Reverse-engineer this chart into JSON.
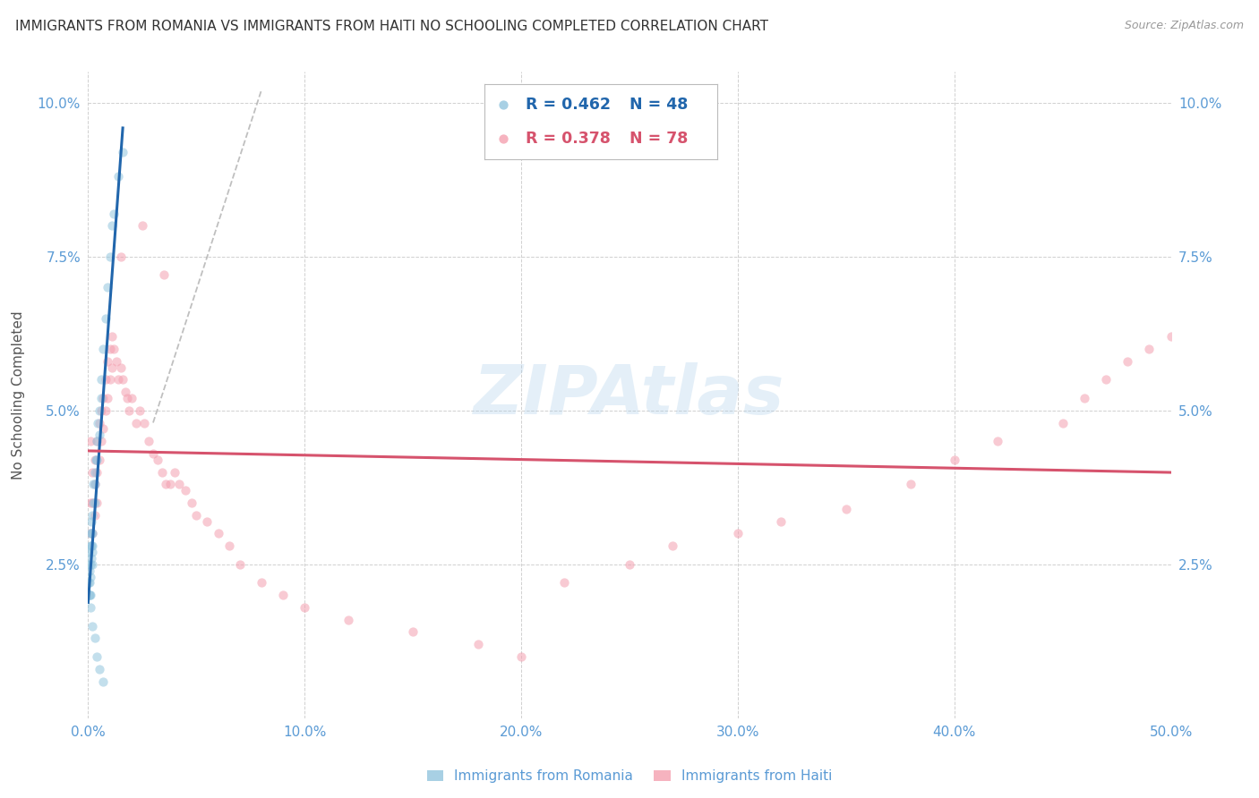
{
  "title": "IMMIGRANTS FROM ROMANIA VS IMMIGRANTS FROM HAITI NO SCHOOLING COMPLETED CORRELATION CHART",
  "source": "Source: ZipAtlas.com",
  "ylabel": "No Schooling Completed",
  "xlim": [
    0.0,
    0.5
  ],
  "ylim": [
    0.0,
    0.105
  ],
  "xticks": [
    0.0,
    0.1,
    0.2,
    0.3,
    0.4,
    0.5
  ],
  "xticklabels": [
    "0.0%",
    "10.0%",
    "20.0%",
    "30.0%",
    "40.0%",
    "50.0%"
  ],
  "yticks": [
    0.0,
    0.025,
    0.05,
    0.075,
    0.1
  ],
  "yticklabels": [
    "",
    "2.5%",
    "5.0%",
    "7.5%",
    "10.0%"
  ],
  "legend_r_romania": "R = 0.462",
  "legend_n_romania": "N = 48",
  "legend_r_haiti": "R = 0.378",
  "legend_n_haiti": "N = 78",
  "color_romania": "#92c5de",
  "color_haiti": "#f4a0b0",
  "color_regression_romania": "#2166ac",
  "color_regression_haiti": "#d6536d",
  "color_title": "#333333",
  "color_source": "#999999",
  "color_axis": "#5b9bd5",
  "watermark": "ZIPAtlas",
  "romania_x": [
    0.0002,
    0.0003,
    0.0004,
    0.0005,
    0.0006,
    0.0007,
    0.0008,
    0.0009,
    0.001,
    0.001,
    0.001,
    0.001,
    0.0012,
    0.0013,
    0.0014,
    0.0015,
    0.0016,
    0.0017,
    0.0018,
    0.002,
    0.002,
    0.002,
    0.0022,
    0.0025,
    0.003,
    0.003,
    0.0032,
    0.0035,
    0.004,
    0.004,
    0.0045,
    0.005,
    0.005,
    0.006,
    0.006,
    0.007,
    0.008,
    0.009,
    0.01,
    0.011,
    0.012,
    0.014,
    0.016,
    0.002,
    0.003,
    0.004,
    0.005,
    0.007
  ],
  "romania_y": [
    0.027,
    0.025,
    0.022,
    0.02,
    0.024,
    0.022,
    0.02,
    0.018,
    0.028,
    0.025,
    0.023,
    0.02,
    0.03,
    0.028,
    0.026,
    0.032,
    0.03,
    0.028,
    0.025,
    0.033,
    0.03,
    0.027,
    0.035,
    0.038,
    0.038,
    0.035,
    0.04,
    0.042,
    0.045,
    0.042,
    0.048,
    0.05,
    0.046,
    0.055,
    0.052,
    0.06,
    0.065,
    0.07,
    0.075,
    0.08,
    0.082,
    0.088,
    0.092,
    0.015,
    0.013,
    0.01,
    0.008,
    0.006
  ],
  "haiti_x": [
    0.001,
    0.001,
    0.001,
    0.002,
    0.002,
    0.002,
    0.003,
    0.003,
    0.003,
    0.004,
    0.004,
    0.004,
    0.005,
    0.005,
    0.006,
    0.006,
    0.007,
    0.007,
    0.008,
    0.008,
    0.009,
    0.009,
    0.01,
    0.01,
    0.011,
    0.011,
    0.012,
    0.013,
    0.014,
    0.015,
    0.016,
    0.017,
    0.018,
    0.019,
    0.02,
    0.022,
    0.024,
    0.026,
    0.028,
    0.03,
    0.032,
    0.034,
    0.036,
    0.038,
    0.04,
    0.042,
    0.045,
    0.048,
    0.05,
    0.055,
    0.06,
    0.065,
    0.07,
    0.08,
    0.09,
    0.1,
    0.12,
    0.15,
    0.18,
    0.2,
    0.22,
    0.25,
    0.27,
    0.3,
    0.32,
    0.35,
    0.38,
    0.4,
    0.42,
    0.45,
    0.46,
    0.47,
    0.48,
    0.49,
    0.5,
    0.015,
    0.025,
    0.035
  ],
  "haiti_y": [
    0.035,
    0.03,
    0.045,
    0.04,
    0.035,
    0.03,
    0.042,
    0.038,
    0.033,
    0.045,
    0.04,
    0.035,
    0.048,
    0.042,
    0.05,
    0.045,
    0.052,
    0.047,
    0.055,
    0.05,
    0.058,
    0.052,
    0.06,
    0.055,
    0.062,
    0.057,
    0.06,
    0.058,
    0.055,
    0.057,
    0.055,
    0.053,
    0.052,
    0.05,
    0.052,
    0.048,
    0.05,
    0.048,
    0.045,
    0.043,
    0.042,
    0.04,
    0.038,
    0.038,
    0.04,
    0.038,
    0.037,
    0.035,
    0.033,
    0.032,
    0.03,
    0.028,
    0.025,
    0.022,
    0.02,
    0.018,
    0.016,
    0.014,
    0.012,
    0.01,
    0.022,
    0.025,
    0.028,
    0.03,
    0.032,
    0.034,
    0.038,
    0.042,
    0.045,
    0.048,
    0.052,
    0.055,
    0.058,
    0.06,
    0.062,
    0.075,
    0.08,
    0.072
  ],
  "background_color": "#ffffff",
  "grid_color": "#d0d0d0",
  "dot_size": 55,
  "dot_alpha": 0.55,
  "line_width": 2.2,
  "dash_line_x": [
    0.03,
    0.08
  ],
  "dash_line_y": [
    0.048,
    0.102
  ]
}
